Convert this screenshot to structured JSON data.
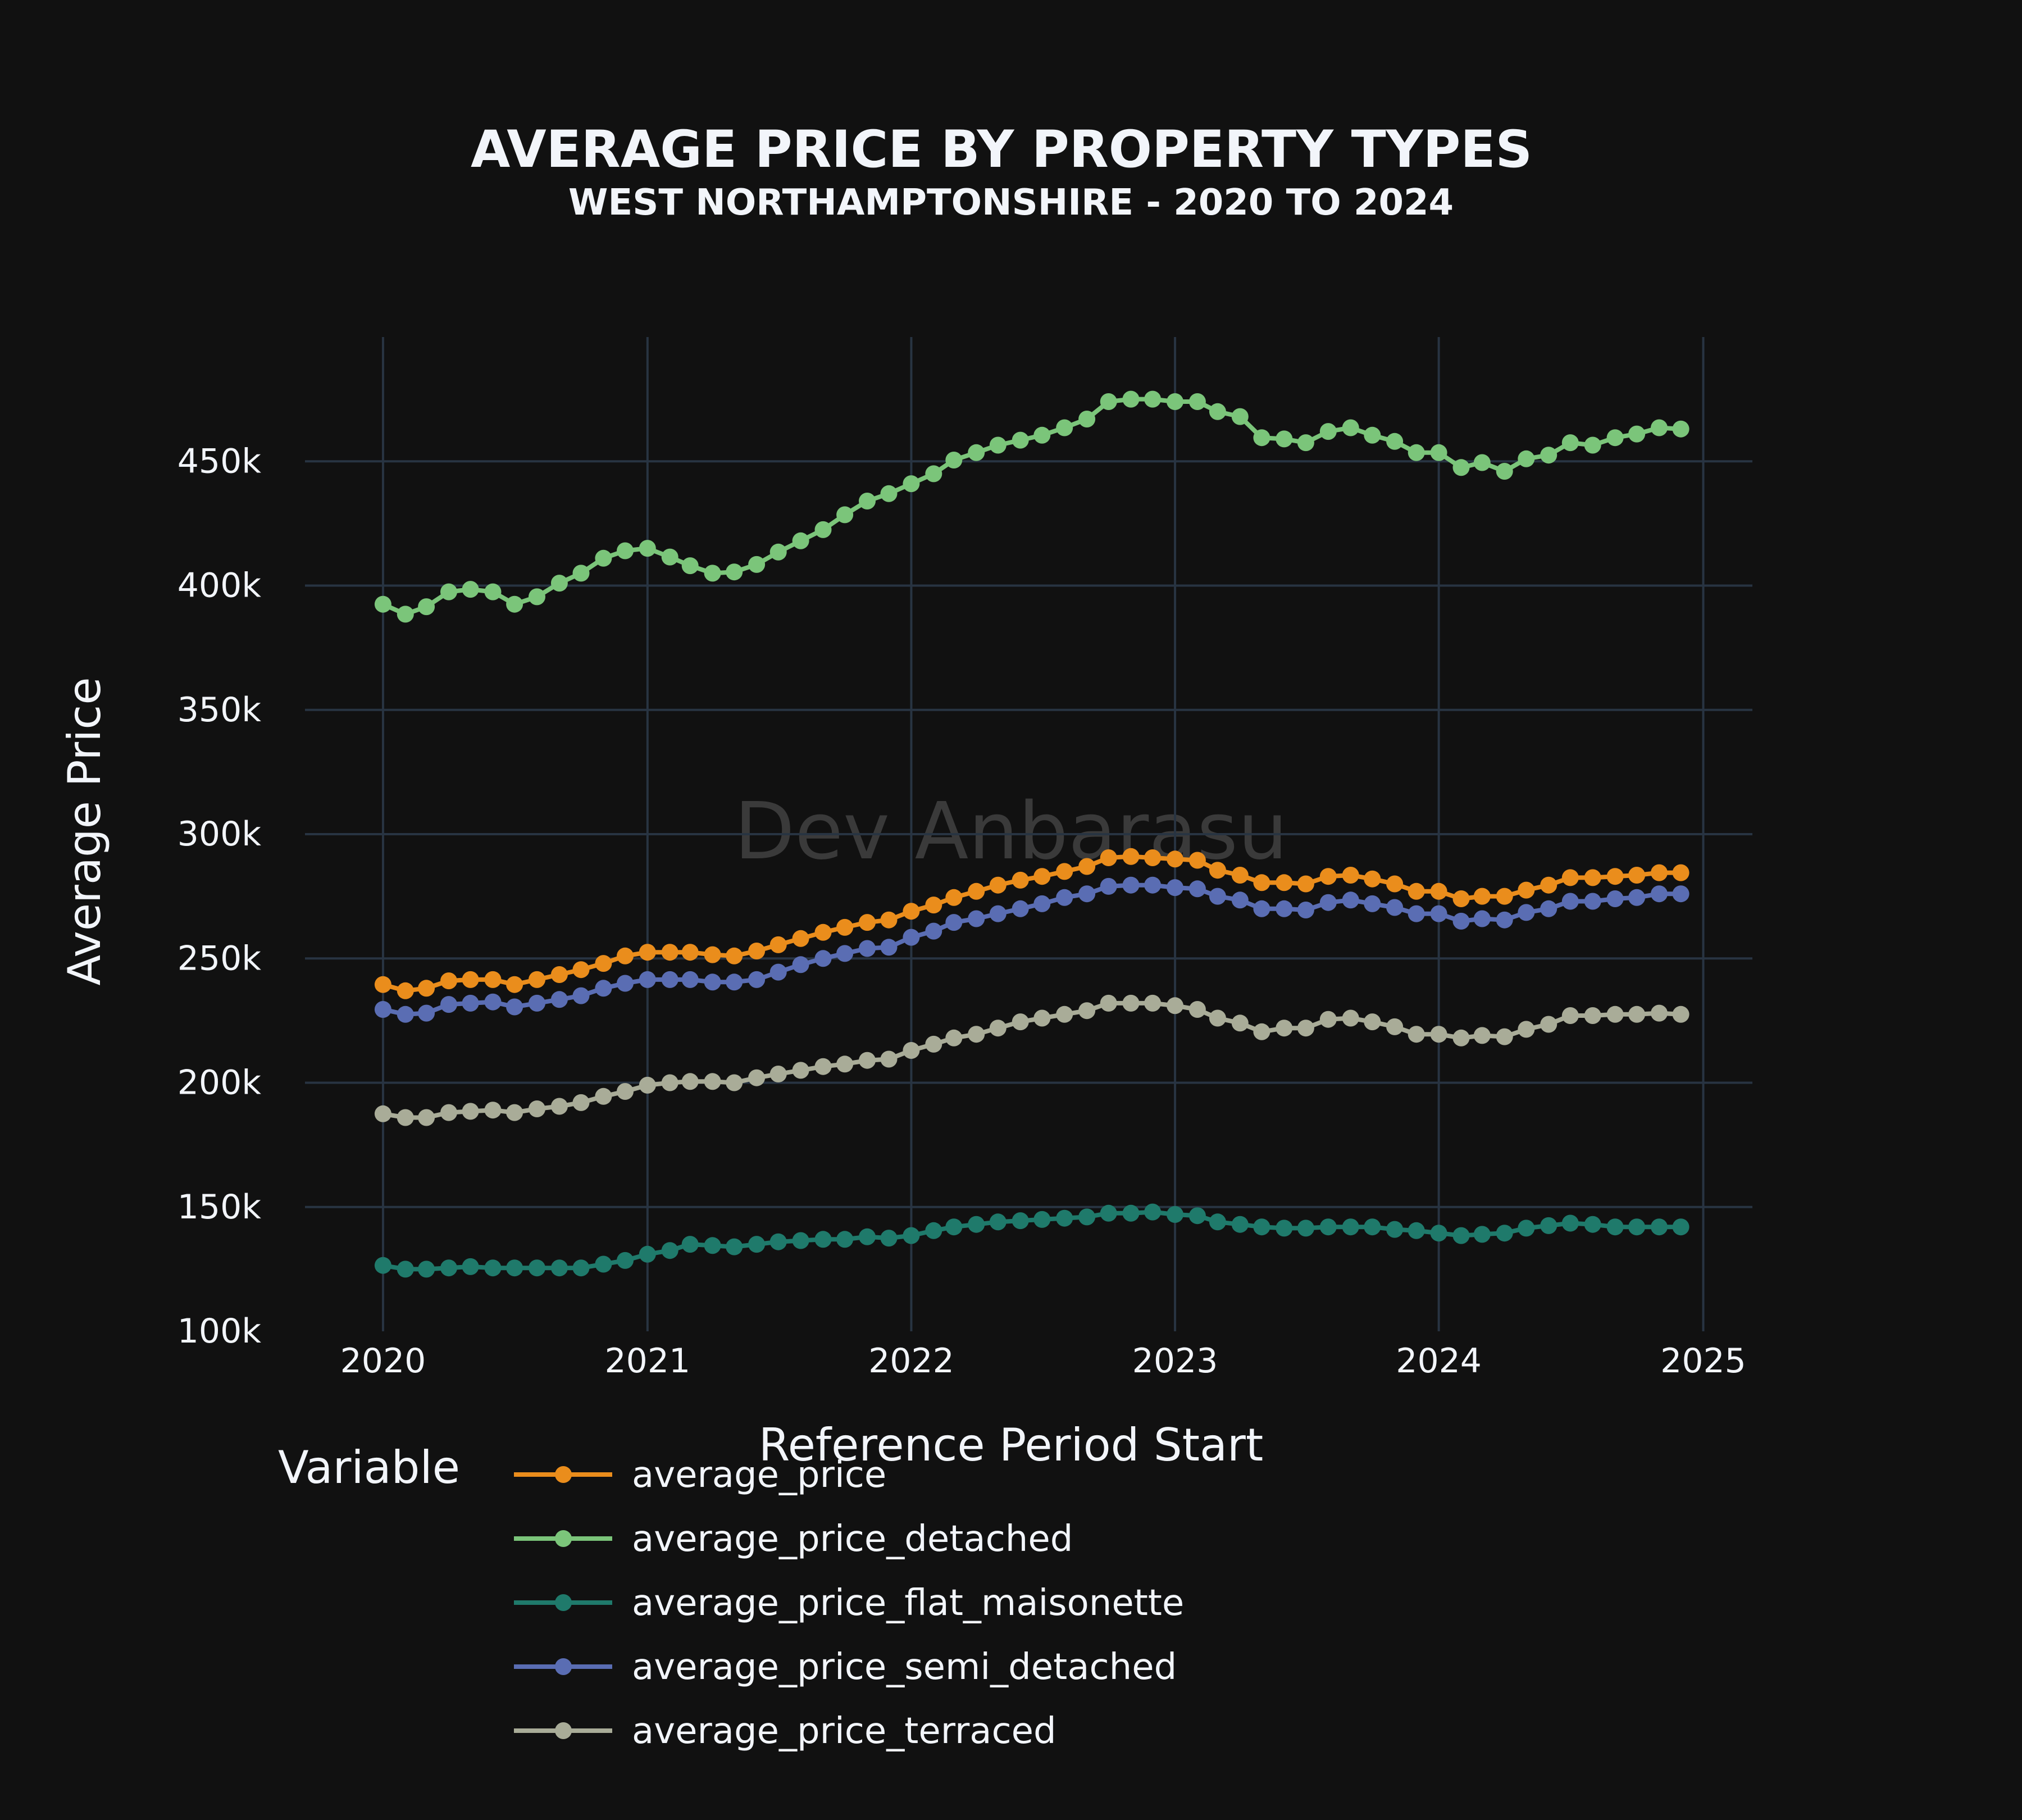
{
  "chart_data": {
    "type": "line",
    "title": "AVERAGE PRICE BY PROPERTY TYPES",
    "subtitle": "WEST NORTHAMPTONSHIRE - 2020 TO 2024",
    "xlabel": "Reference Period Start",
    "ylabel": "Average Price",
    "xlim": [
      "2019-09-15",
      "2025-03-10"
    ],
    "ylim": [
      100000,
      500000
    ],
    "x_ticks": [
      "2020",
      "2021",
      "2022",
      "2023",
      "2024",
      "2025"
    ],
    "y_ticks": [
      {
        "value": 100000,
        "label": "100k"
      },
      {
        "value": 150000,
        "label": "150k"
      },
      {
        "value": 200000,
        "label": "200k"
      },
      {
        "value": 250000,
        "label": "250k"
      },
      {
        "value": 300000,
        "label": "300k"
      },
      {
        "value": 350000,
        "label": "350k"
      },
      {
        "value": 400000,
        "label": "400k"
      },
      {
        "value": 450000,
        "label": "450k"
      }
    ],
    "grid": true,
    "legend_title": "Variable",
    "legend_position": "bottom",
    "watermark": "Dev Anbarasu",
    "x": [
      "2020-01",
      "2020-02",
      "2020-03",
      "2020-04",
      "2020-05",
      "2020-06",
      "2020-07",
      "2020-08",
      "2020-09",
      "2020-10",
      "2020-11",
      "2020-12",
      "2021-01",
      "2021-02",
      "2021-03",
      "2021-04",
      "2021-05",
      "2021-06",
      "2021-07",
      "2021-08",
      "2021-09",
      "2021-10",
      "2021-11",
      "2021-12",
      "2022-01",
      "2022-02",
      "2022-03",
      "2022-04",
      "2022-05",
      "2022-06",
      "2022-07",
      "2022-08",
      "2022-09",
      "2022-10",
      "2022-11",
      "2022-12",
      "2023-01",
      "2023-02",
      "2023-03",
      "2023-04",
      "2023-05",
      "2023-06",
      "2023-07",
      "2023-08",
      "2023-09",
      "2023-10",
      "2023-11",
      "2023-12",
      "2024-01",
      "2024-02",
      "2024-03",
      "2024-04",
      "2024-05",
      "2024-06",
      "2024-07",
      "2024-08",
      "2024-09",
      "2024-10",
      "2024-11",
      "2024-12"
    ],
    "series": [
      {
        "name": "average_price",
        "color": "#ea8d1c",
        "values": [
          239500,
          237000,
          238000,
          241000,
          241500,
          241500,
          239500,
          241500,
          243500,
          245500,
          248000,
          251000,
          252500,
          252500,
          252500,
          251500,
          251000,
          253000,
          255500,
          258000,
          260500,
          262500,
          264500,
          265500,
          269000,
          271500,
          274500,
          277000,
          279500,
          281500,
          283000,
          285000,
          287000,
          290500,
          291000,
          290500,
          290000,
          289500,
          285500,
          283500,
          280500,
          280500,
          280000,
          283000,
          283500,
          282000,
          280000,
          277000,
          277000,
          274000,
          275000,
          275000,
          277500,
          279500,
          282500,
          282500,
          283000,
          283500,
          284500,
          284500
        ]
      },
      {
        "name": "average_price_detached",
        "color": "#7bc57a",
        "values": [
          392500,
          388500,
          391500,
          397500,
          398500,
          397500,
          392500,
          395500,
          401000,
          405000,
          411000,
          414000,
          415000,
          411500,
          408000,
          405000,
          405500,
          408500,
          413500,
          418000,
          422500,
          428500,
          434000,
          437000,
          441000,
          445000,
          450500,
          453500,
          456500,
          458500,
          460500,
          463500,
          467000,
          474000,
          475000,
          475000,
          474000,
          474000,
          470000,
          468000,
          459500,
          459000,
          457500,
          462000,
          463500,
          460500,
          458000,
          453500,
          453500,
          447500,
          449500,
          446000,
          451000,
          452500,
          457500,
          456500,
          459500,
          461000,
          463500,
          463000
        ]
      },
      {
        "name": "average_price_flat_maisonette",
        "color": "#1f7a6b",
        "values": [
          126500,
          125000,
          125000,
          125500,
          126000,
          125500,
          125500,
          125500,
          125500,
          125500,
          127000,
          128500,
          131000,
          132500,
          135000,
          134500,
          134000,
          135000,
          136000,
          136500,
          137000,
          137000,
          138000,
          137500,
          138500,
          140500,
          142000,
          143000,
          144000,
          144500,
          145000,
          145500,
          146000,
          147500,
          147500,
          148000,
          147000,
          146500,
          144000,
          143000,
          142000,
          141500,
          141500,
          142000,
          142000,
          142000,
          141000,
          140500,
          139500,
          138500,
          139000,
          139500,
          141500,
          142500,
          143500,
          143000,
          142000,
          142000,
          142000,
          142000
        ]
      },
      {
        "name": "average_price_semi_detached",
        "color": "#5a6db3",
        "values": [
          229500,
          227500,
          228000,
          231500,
          232000,
          232500,
          230500,
          232000,
          233500,
          235000,
          238000,
          240000,
          241500,
          241500,
          241500,
          240500,
          240500,
          241500,
          244500,
          247500,
          250000,
          252000,
          254000,
          254500,
          258500,
          261000,
          264500,
          266000,
          268000,
          270000,
          272000,
          274500,
          276000,
          279000,
          279500,
          279500,
          278500,
          278000,
          275000,
          273500,
          270000,
          270000,
          269500,
          272500,
          273500,
          272000,
          270500,
          268000,
          268000,
          265000,
          266000,
          265500,
          268500,
          270000,
          273000,
          273000,
          274000,
          274500,
          276000,
          276000
        ]
      },
      {
        "name": "average_price_terraced",
        "color": "#a9ac98",
        "values": [
          187500,
          186000,
          186000,
          188000,
          188500,
          189000,
          188000,
          189500,
          190500,
          192000,
          194500,
          196500,
          199000,
          200000,
          200500,
          200500,
          200000,
          202000,
          203500,
          205000,
          206500,
          207500,
          209000,
          209500,
          213000,
          215500,
          218000,
          219500,
          222000,
          224500,
          226000,
          227500,
          229000,
          232000,
          232000,
          232000,
          231000,
          229500,
          226000,
          224000,
          220500,
          222000,
          222000,
          225500,
          226000,
          224500,
          222500,
          219500,
          219500,
          218000,
          219000,
          218500,
          221500,
          223500,
          227000,
          227000,
          227500,
          227500,
          228000,
          227500
        ]
      }
    ]
  }
}
